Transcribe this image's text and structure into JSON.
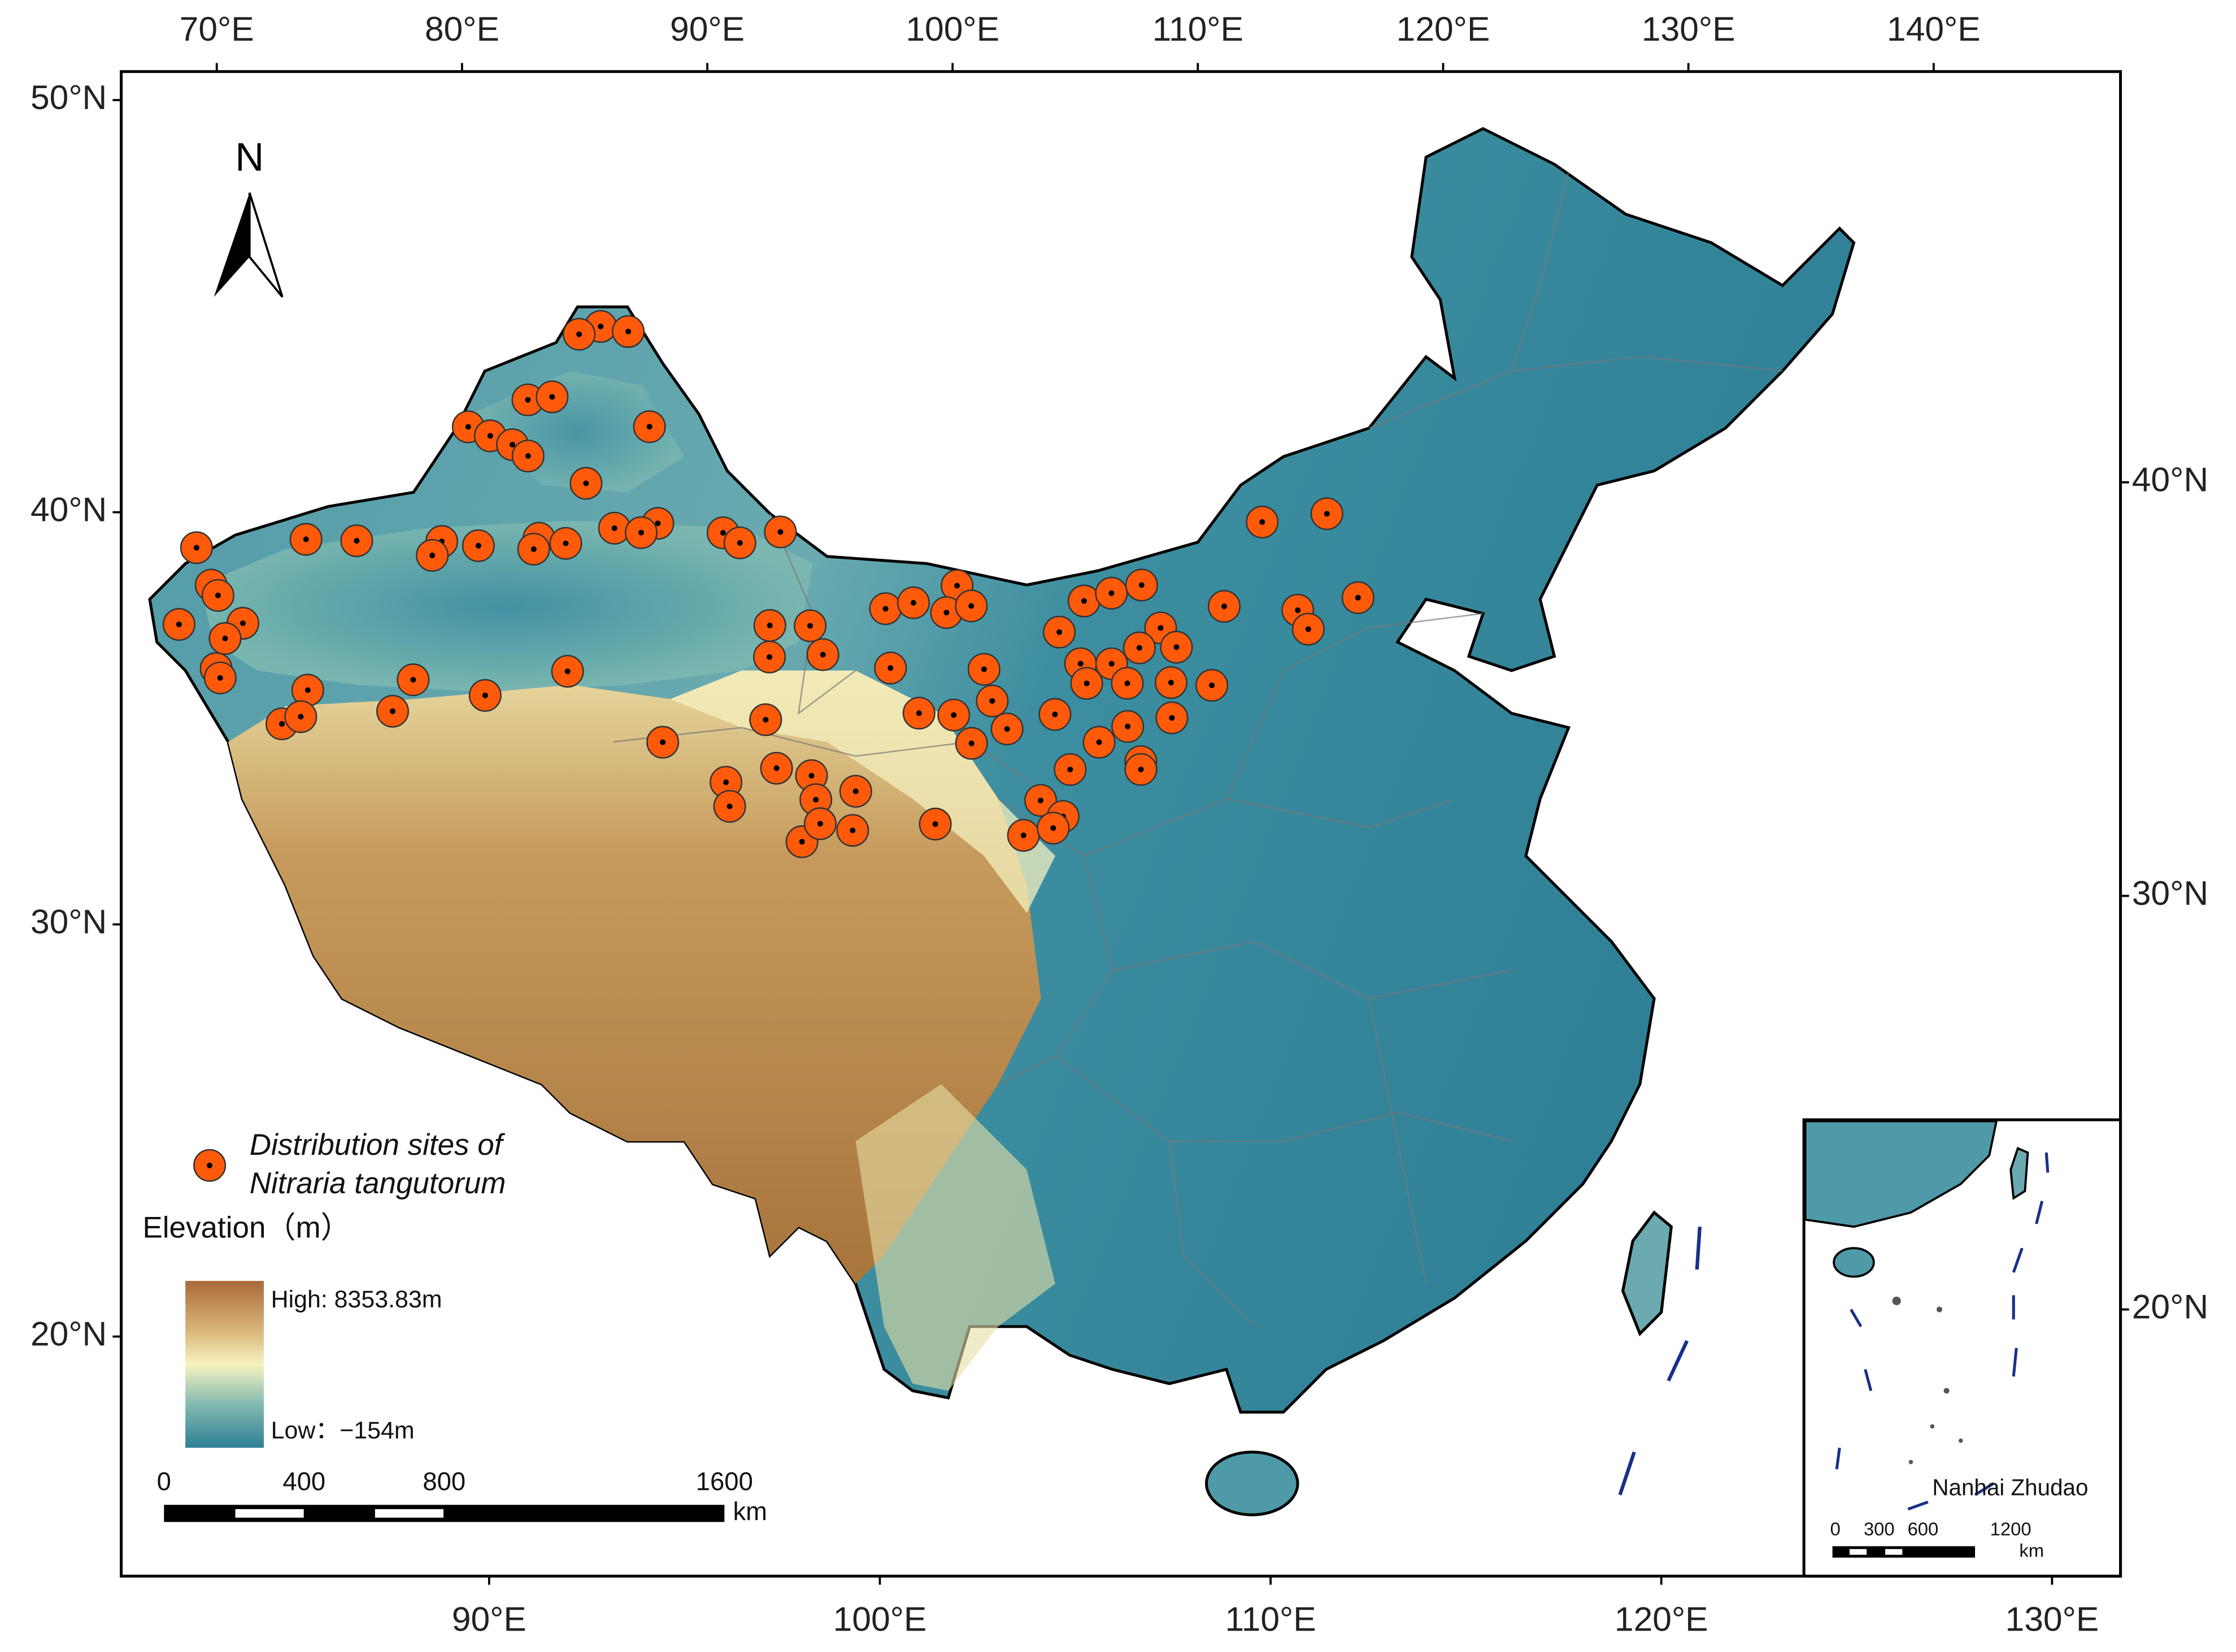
{
  "map": {
    "lon_ticks_top": [
      {
        "value": 70,
        "label": "70°E"
      },
      {
        "value": 80,
        "label": "80°E"
      },
      {
        "value": 90,
        "label": "90°E"
      },
      {
        "value": 100,
        "label": "100°E"
      },
      {
        "value": 110,
        "label": "110°E"
      },
      {
        "value": 120,
        "label": "120°E"
      },
      {
        "value": 130,
        "label": "130°E"
      },
      {
        "value": 140,
        "label": "140°E"
      }
    ],
    "lon_ticks_bottom": [
      {
        "value": 90,
        "label": "90°E"
      },
      {
        "value": 100,
        "label": "100°E"
      },
      {
        "value": 110,
        "label": "110°E"
      },
      {
        "value": 120,
        "label": "120°E"
      },
      {
        "value": 130,
        "label": "130°E"
      }
    ],
    "lat_ticks_left": [
      {
        "value": 50,
        "label": "50°N"
      },
      {
        "value": 40,
        "label": "40°N"
      },
      {
        "value": 30,
        "label": "30°N"
      },
      {
        "value": 20,
        "label": "20°N"
      }
    ],
    "lat_ticks_right": [
      {
        "value": 40,
        "label": "40°N"
      },
      {
        "value": 30,
        "label": "30°N"
      },
      {
        "value": 20,
        "label": "20°N"
      }
    ],
    "north": "N",
    "legend": {
      "sites_label": [
        "Distribution sites of",
        "Nitraria tangutorum"
      ],
      "marker_color": "#ff5a0a",
      "elevation_title": "Elevation（m）",
      "high": "High: 8353.83m",
      "low": "Low：−154m"
    },
    "scale_bar": {
      "labels": [
        0,
        400,
        800,
        1600
      ],
      "unit": "km"
    },
    "inset": {
      "title": "Nanhai Zhudao",
      "scale_labels": [
        0,
        300,
        600,
        1200
      ],
      "unit": "km"
    },
    "sites": [
      [
        87.0,
        47.9
      ],
      [
        88.0,
        47.9
      ],
      [
        86.3,
        47.6
      ],
      [
        85.0,
        45.7
      ],
      [
        85.8,
        45.9
      ],
      [
        83.2,
        44.7
      ],
      [
        84.0,
        44.6
      ],
      [
        84.8,
        44.5
      ],
      [
        85.4,
        44.3
      ],
      [
        89.3,
        45.6
      ],
      [
        87.5,
        43.9
      ],
      [
        78.9,
        40.9
      ],
      [
        80.5,
        41.2
      ],
      [
        83.2,
        41.7
      ],
      [
        84.4,
        41.8
      ],
      [
        86.3,
        42.3
      ],
      [
        87.2,
        42.3
      ],
      [
        86.2,
        42.0
      ],
      [
        88.7,
        42.9
      ],
      [
        90.1,
        43.2
      ],
      [
        92.3,
        43.2
      ],
      [
        94.2,
        43.4
      ],
      [
        92.9,
        43.0
      ],
      [
        83.0,
        41.3
      ],
      [
        75.6,
        39.9
      ],
      [
        76.4,
        39.1
      ],
      [
        76.7,
        38.9
      ],
      [
        75.8,
        37.9
      ],
      [
        77.7,
        38.4
      ],
      [
        77.3,
        37.9
      ],
      [
        77.3,
        37.1
      ],
      [
        77.5,
        36.9
      ],
      [
        79.7,
        36.2
      ],
      [
        80.2,
        37.2
      ],
      [
        80.2,
        36.5
      ],
      [
        82.9,
        37.2
      ],
      [
        83.3,
        38.1
      ],
      [
        85.6,
        38.1
      ],
      [
        88.0,
        39.1
      ],
      [
        91.3,
        37.7
      ],
      [
        94.3,
        40.2
      ],
      [
        94.4,
        38.6
      ],
      [
        95.5,
        41.1
      ],
      [
        96.0,
        40.4
      ],
      [
        94.9,
        37.4
      ],
      [
        93.4,
        36.9
      ],
      [
        93.6,
        36.3
      ],
      [
        96.0,
        37.3
      ],
      [
        96.2,
        36.7
      ],
      [
        97.4,
        37.0
      ],
      [
        95.9,
        35.6
      ],
      [
        97.4,
        36.0
      ],
      [
        99.9,
        36.3
      ],
      [
        97.9,
        41.7
      ],
      [
        98.8,
        41.9
      ],
      [
        100.2,
        42.4
      ],
      [
        99.9,
        41.7
      ],
      [
        100.7,
        41.9
      ],
      [
        101.2,
        40.3
      ],
      [
        98.2,
        40.2
      ],
      [
        99.2,
        39.1
      ],
      [
        100.3,
        39.1
      ],
      [
        101.5,
        39.5
      ],
      [
        102.0,
        38.8
      ],
      [
        100.9,
        38.4
      ],
      [
        103.5,
        39.2
      ],
      [
        103.6,
        41.3
      ],
      [
        104.4,
        42.1
      ],
      [
        105.3,
        42.3
      ],
      [
        106.3,
        42.5
      ],
      [
        106.9,
        41.4
      ],
      [
        104.3,
        40.5
      ],
      [
        105.3,
        40.5
      ],
      [
        106.2,
        40.9
      ],
      [
        107.4,
        40.9
      ],
      [
        105.8,
        40.0
      ],
      [
        104.5,
        40.0
      ],
      [
        104.9,
        38.5
      ],
      [
        104.0,
        37.8
      ],
      [
        106.2,
        38.0
      ],
      [
        103.1,
        37.0
      ],
      [
        103.8,
        36.6
      ],
      [
        102.6,
        36.1
      ],
      [
        103.5,
        36.3
      ],
      [
        106.2,
        37.8
      ],
      [
        108.5,
        39.9
      ],
      [
        110.4,
        44.0
      ],
      [
        112.6,
        44.1
      ],
      [
        111.4,
        41.7
      ],
      [
        111.7,
        41.2
      ],
      [
        113.4,
        41.9
      ],
      [
        109.0,
        41.9
      ],
      [
        94.2,
        41.0
      ],
      [
        89.6,
        42.9
      ],
      [
        107.2,
        40.0
      ],
      [
        105.8,
        38.9
      ],
      [
        107.2,
        39.1
      ],
      [
        96.4,
        36.1
      ]
    ]
  }
}
